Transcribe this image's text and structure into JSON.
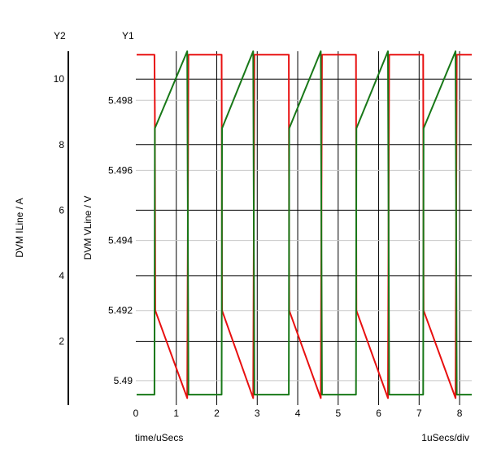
{
  "chart_data": {
    "type": "line",
    "title": "",
    "axis_tags": {
      "y2": "Y2",
      "y1": "Y1"
    },
    "xlabel": "time/uSecs",
    "x_scale_note": "1uSecs/div",
    "x_range": [
      0,
      8.3
    ],
    "x_ticks": [
      0,
      1,
      2,
      3,
      4,
      5,
      6,
      7,
      8
    ],
    "x_tick_labels": [
      "0",
      "1",
      "2",
      "3",
      "4",
      "5",
      "6",
      "7",
      "8"
    ],
    "y1": {
      "label": "DVM VLine / V",
      "range": [
        5.4893,
        5.4994
      ],
      "ticks": [
        5.49,
        5.492,
        5.494,
        5.496,
        5.498
      ],
      "tick_labels": [
        "5.49",
        "5.492",
        "5.494",
        "5.496",
        "5.498"
      ]
    },
    "y2": {
      "label": "DVM ILine / A",
      "range": [
        0.05,
        10.85
      ],
      "ticks": [
        2,
        4,
        6,
        8,
        10
      ],
      "tick_labels": [
        "2",
        "4",
        "6",
        "8",
        "10"
      ]
    },
    "grid": true,
    "series": [
      {
        "axis": "y1",
        "color": "#e81010",
        "points": [
          [
            0.02,
            5.4993
          ],
          [
            0.46,
            5.4993
          ],
          [
            0.47,
            5.4976
          ],
          [
            0.48,
            5.492
          ],
          [
            1.27,
            5.4895
          ],
          [
            1.3,
            5.4993
          ],
          [
            2.12,
            5.4993
          ],
          [
            2.13,
            5.492
          ],
          [
            2.9,
            5.4895
          ],
          [
            2.93,
            5.4993
          ],
          [
            3.78,
            5.4993
          ],
          [
            3.79,
            5.492
          ],
          [
            4.57,
            5.4895
          ],
          [
            4.6,
            5.4993
          ],
          [
            5.44,
            5.4993
          ],
          [
            5.45,
            5.492
          ],
          [
            6.23,
            5.4895
          ],
          [
            6.26,
            5.4993
          ],
          [
            7.1,
            5.4993
          ],
          [
            7.11,
            5.492
          ],
          [
            7.9,
            5.4895
          ],
          [
            7.93,
            5.4993
          ],
          [
            8.3,
            5.4993
          ]
        ]
      },
      {
        "axis": "y1",
        "color": "#187818",
        "points": [
          [
            0.02,
            5.4896
          ],
          [
            0.46,
            5.4896
          ],
          [
            0.47,
            5.4972
          ],
          [
            1.27,
            5.4994
          ],
          [
            1.3,
            5.4896
          ],
          [
            2.12,
            5.4896
          ],
          [
            2.13,
            5.4972
          ],
          [
            2.9,
            5.4994
          ],
          [
            2.93,
            5.4896
          ],
          [
            3.78,
            5.4896
          ],
          [
            3.79,
            5.4972
          ],
          [
            4.57,
            5.4994
          ],
          [
            4.6,
            5.4896
          ],
          [
            5.44,
            5.4896
          ],
          [
            5.45,
            5.4972
          ],
          [
            6.23,
            5.4994
          ],
          [
            6.26,
            5.4896
          ],
          [
            7.1,
            5.4896
          ],
          [
            7.11,
            5.4972
          ],
          [
            7.9,
            5.4994
          ],
          [
            7.93,
            5.4896
          ],
          [
            8.3,
            5.4896
          ]
        ]
      }
    ]
  }
}
